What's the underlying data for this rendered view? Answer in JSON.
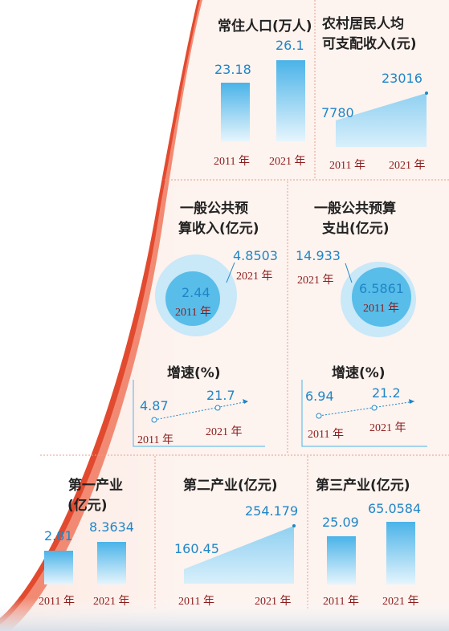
{
  "colors": {
    "panel_bg": "#fdf1ec",
    "divider": "#e3a08e",
    "arc_outer": "#f28a73",
    "arc_inner": "#e24a2f",
    "bar_top": "#4ab3e8",
    "bar_bottom": "#e6f5fd",
    "value_blue": "#1f86c6",
    "year_red": "#8a1c1c",
    "circle_light": "#c9e8f8",
    "circle_dark": "#58bde9"
  },
  "chart_data": [
    {
      "id": "population",
      "type": "bar",
      "title": "常住人口(万人)",
      "categories": [
        "2011 年",
        "2021 年"
      ],
      "values": [
        23.18,
        26.1
      ],
      "value_labels": [
        "23.18",
        "26.1"
      ]
    },
    {
      "id": "rural_income",
      "type": "area",
      "title": "农村居民人均可支配收入(元)",
      "categories": [
        "2011 年",
        "2021 年"
      ],
      "values": [
        7780,
        23016
      ],
      "value_labels": [
        "7780",
        "23016"
      ]
    },
    {
      "id": "public_revenue",
      "type": "bubble",
      "title": "一般公共预算收入(亿元)",
      "categories": [
        "2011 年",
        "2021 年"
      ],
      "values": [
        2.44,
        4.8503
      ],
      "value_labels": [
        "2.44",
        "4.8503"
      ]
    },
    {
      "id": "public_expenditure",
      "type": "bubble",
      "title": "一般公共预算支出(亿元)",
      "categories": [
        "2011 年",
        "2021 年"
      ],
      "values": [
        6.5861,
        14.933
      ],
      "value_labels": [
        "6.5861",
        "14.933"
      ]
    },
    {
      "id": "revenue_growth",
      "type": "line",
      "title": "增速(%)",
      "categories": [
        "2011 年",
        "2021 年"
      ],
      "values": [
        4.87,
        21.7
      ],
      "value_labels": [
        "4.87",
        "21.7"
      ]
    },
    {
      "id": "expenditure_growth",
      "type": "line",
      "title": "增速(%)",
      "categories": [
        "2011 年",
        "2021 年"
      ],
      "values": [
        6.94,
        21.2
      ],
      "value_labels": [
        "6.94",
        "21.2"
      ]
    },
    {
      "id": "primary_industry",
      "type": "bar",
      "title": "第一产业(亿元)",
      "categories": [
        "2011 年",
        "2021 年"
      ],
      "values": [
        2.81,
        8.3634
      ],
      "value_labels": [
        "2.81",
        "8.3634"
      ]
    },
    {
      "id": "secondary_industry",
      "type": "area",
      "title": "第二产业(亿元)",
      "categories": [
        "2011 年",
        "2021 年"
      ],
      "values": [
        160.45,
        254.179
      ],
      "value_labels": [
        "160.45",
        "254.179"
      ]
    },
    {
      "id": "tertiary_industry",
      "type": "bar",
      "title": "第三产业(亿元)",
      "categories": [
        "2011 年",
        "2021 年"
      ],
      "values": [
        25.09,
        65.0584
      ],
      "value_labels": [
        "25.09",
        "65.0584"
      ]
    }
  ],
  "labels": {
    "population_title": "常住人口(万人)",
    "rural_income_title_1": "农村居民人均",
    "rural_income_title_2": "可支配收入(元)",
    "revenue_title_1": "一般公共预",
    "revenue_title_2": "算收入(亿元)",
    "expenditure_title_1": "一般公共预算",
    "expenditure_title_2": "支出(亿元)",
    "growth_title": "增速(%)",
    "primary_title_1": "第一产业",
    "primary_title_2": "(亿元)",
    "secondary_title": "第二产业(亿元)",
    "tertiary_title": "第三产业(亿元)",
    "year_2011": "2011 年",
    "year_2021": "2021 年"
  }
}
